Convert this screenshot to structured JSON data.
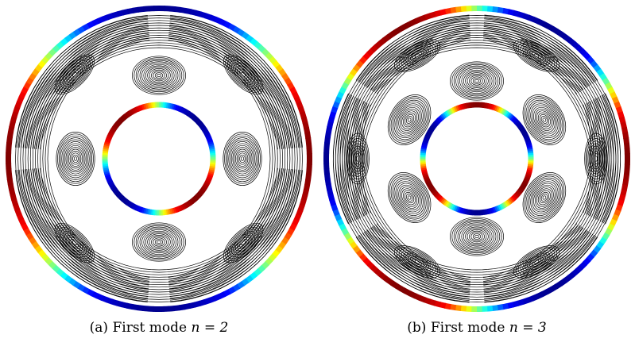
{
  "figures": [
    {
      "id": "a",
      "label": "(a)",
      "caption": "First mode n = 2",
      "caption_prefix": "First mode ",
      "caption_math": "n = 2",
      "mode_number": 2
    },
    {
      "id": "b",
      "label": "(b)",
      "caption": "First mode n = 3",
      "caption_prefix": "First mode ",
      "caption_math": "n = 3",
      "mode_number": 3
    }
  ],
  "colors": {
    "streamline": "#000000",
    "colormap": [
      "#00008f",
      "#0000ff",
      "#00ffff",
      "#ffff00",
      "#ff0000",
      "#800000"
    ]
  }
}
